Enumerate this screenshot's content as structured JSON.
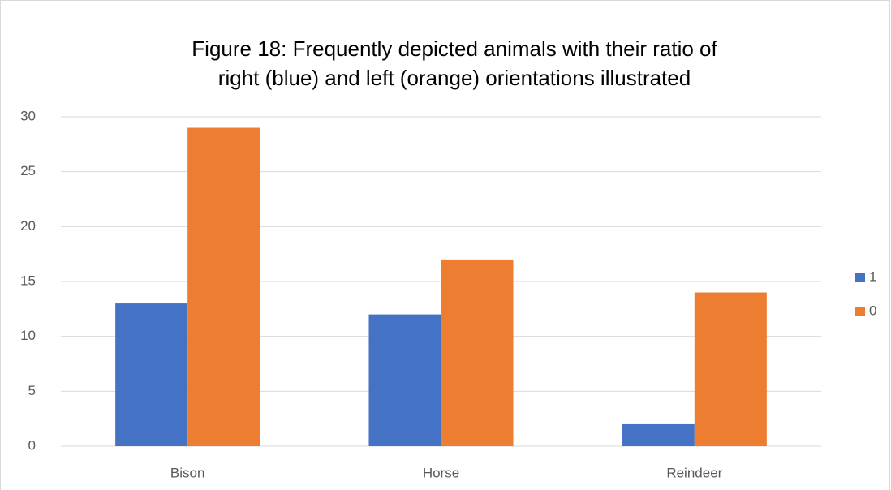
{
  "chart_data": {
    "type": "bar",
    "title": "Figure 18: Frequently depicted animals with their ratio of right (blue) and left (orange) orientations illustrated",
    "categories": [
      "Bison",
      "Horse",
      "Reindeer"
    ],
    "series": [
      {
        "name": "1",
        "color": "#4472c4",
        "values": [
          13,
          12,
          2
        ]
      },
      {
        "name": "0",
        "color": "#ed7d31",
        "values": [
          29,
          17,
          14
        ]
      }
    ],
    "ylim": [
      0,
      30
    ],
    "yticks": [
      0,
      5,
      10,
      15,
      20,
      25,
      30
    ],
    "grid": true,
    "legend": "right"
  }
}
